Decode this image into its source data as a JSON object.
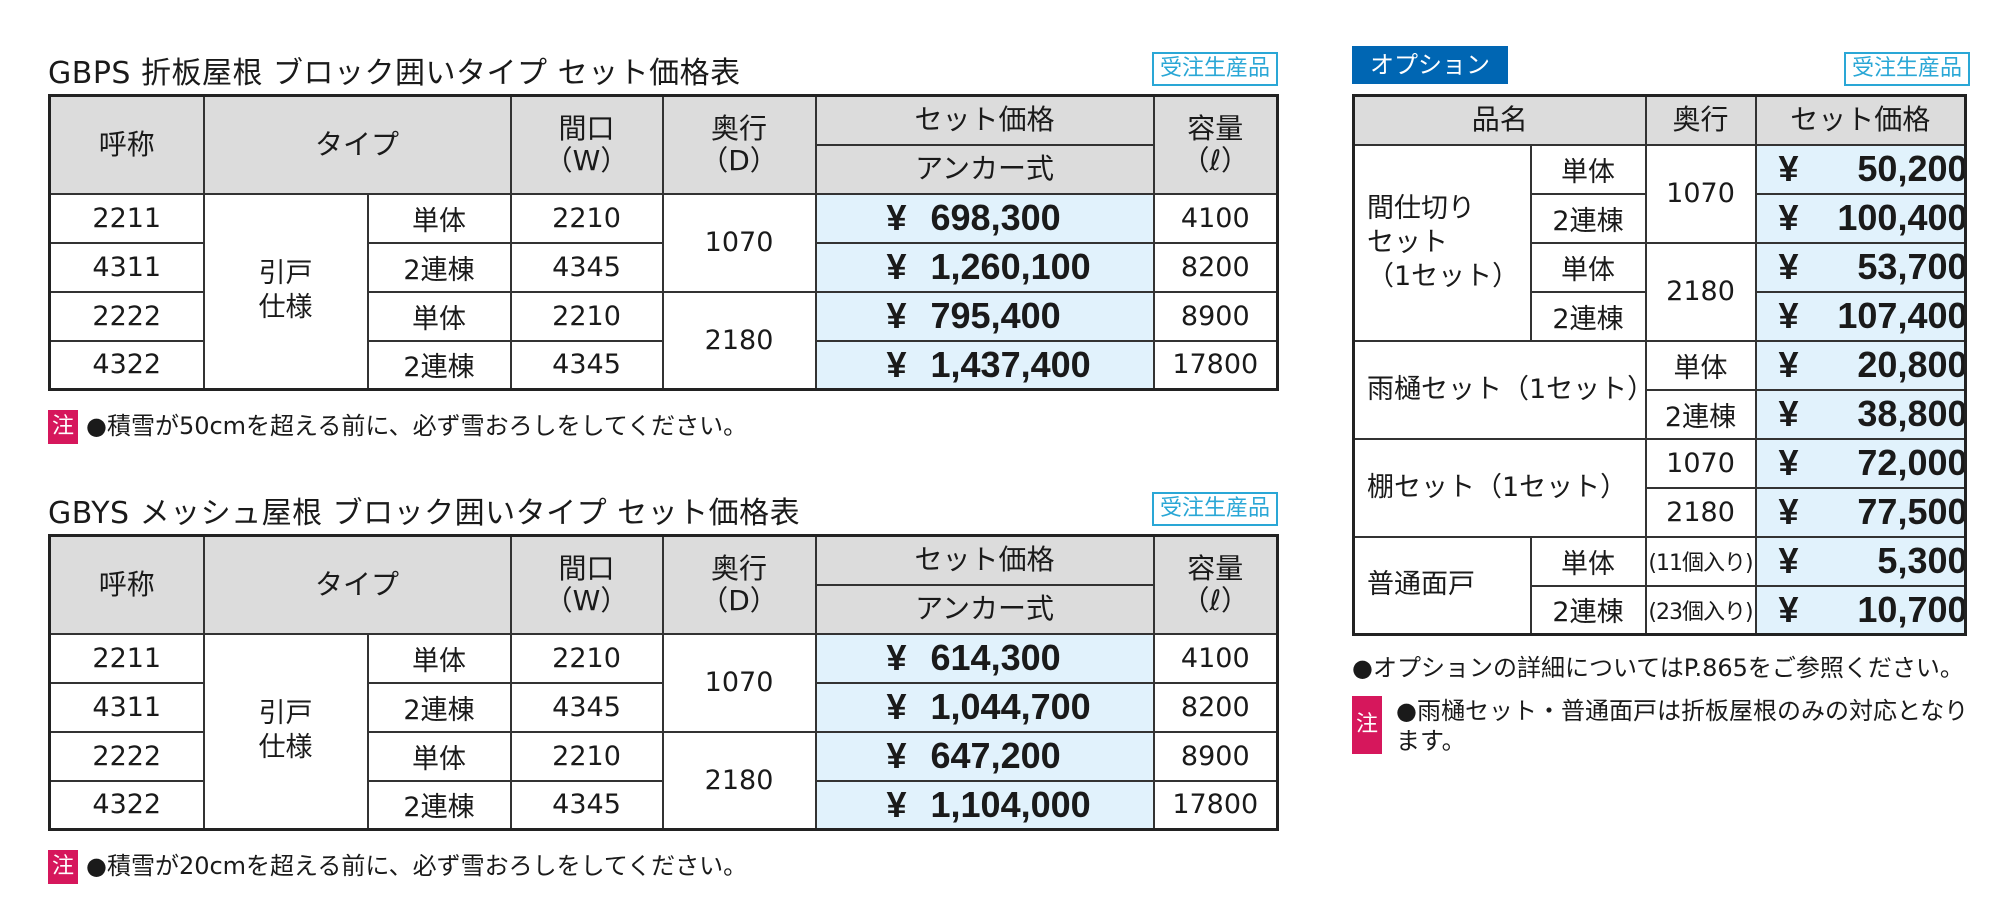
{
  "table1": {
    "title": "GBPS 折板屋根 ブロック囲いタイプ セット価格表",
    "badge": "受注生産品",
    "headers": {
      "name": "呼称",
      "type": "タイプ",
      "width": "間口\n（W）",
      "depth": "奥行\n（D）",
      "set_price": "セット価格",
      "anchor": "アンカー式",
      "capacity": "容量\n（ℓ）"
    },
    "type_label": "引戸\n仕様",
    "rows": [
      {
        "name": "2211",
        "subtype": "単体",
        "width": "2210",
        "yen": "¥",
        "price": "698,300",
        "capacity": "4100"
      },
      {
        "name": "4311",
        "subtype": "2連棟",
        "width": "4345",
        "yen": "¥",
        "price": "1,260,100",
        "capacity": "8200"
      },
      {
        "name": "2222",
        "subtype": "単体",
        "width": "2210",
        "yen": "¥",
        "price": "795,400",
        "capacity": "8900"
      },
      {
        "name": "4322",
        "subtype": "2連棟",
        "width": "4345",
        "yen": "¥",
        "price": "1,437,400",
        "capacity": "17800"
      }
    ],
    "depths": [
      "1070",
      "2180"
    ],
    "note_icon": "注",
    "note": "●積雪が50cmを超える前に、必ず雪おろしをしてください。"
  },
  "table2": {
    "title": "GBYS メッシュ屋根 ブロック囲いタイプ セット価格表",
    "badge": "受注生産品",
    "headers": {
      "name": "呼称",
      "type": "タイプ",
      "width": "間口\n（W）",
      "depth": "奥行\n（D）",
      "set_price": "セット価格",
      "anchor": "アンカー式",
      "capacity": "容量\n（ℓ）"
    },
    "type_label": "引戸\n仕様",
    "rows": [
      {
        "name": "2211",
        "subtype": "単体",
        "width": "2210",
        "yen": "¥",
        "price": "614,300",
        "capacity": "4100"
      },
      {
        "name": "4311",
        "subtype": "2連棟",
        "width": "4345",
        "yen": "¥",
        "price": "1,044,700",
        "capacity": "8200"
      },
      {
        "name": "2222",
        "subtype": "単体",
        "width": "2210",
        "yen": "¥",
        "price": "647,200",
        "capacity": "8900"
      },
      {
        "name": "4322",
        "subtype": "2連棟",
        "width": "4345",
        "yen": "¥",
        "price": "1,104,000",
        "capacity": "17800"
      }
    ],
    "depths": [
      "1070",
      "2180"
    ],
    "note_icon": "注",
    "note": "●積雪が20cmを超える前に、必ず雪おろしをしてください。"
  },
  "options": {
    "label": "オプション",
    "badge": "受注生産品",
    "headers": {
      "item": "品名",
      "depth": "奥行",
      "set_price": "セット価格"
    },
    "partition": {
      "name": "間仕切り\nセット\n（1セット）",
      "rows": [
        {
          "sub": "単体",
          "yen": "¥",
          "price": "50,200"
        },
        {
          "sub": "2連棟",
          "yen": "¥",
          "price": "100,400"
        },
        {
          "sub": "単体",
          "yen": "¥",
          "price": "53,700"
        },
        {
          "sub": "2連棟",
          "yen": "¥",
          "price": "107,400"
        }
      ],
      "depths": [
        "1070",
        "2180"
      ]
    },
    "gutter": {
      "name": "雨樋セット（1セット）",
      "rows": [
        {
          "sub": "単体",
          "yen": "¥",
          "price": "20,800"
        },
        {
          "sub": "2連棟",
          "yen": "¥",
          "price": "38,800"
        }
      ]
    },
    "shelf": {
      "name": "棚セット（1セット）",
      "rows": [
        {
          "sub": "1070",
          "yen": "¥",
          "price": "72,000"
        },
        {
          "sub": "2180",
          "yen": "¥",
          "price": "77,500"
        }
      ]
    },
    "door": {
      "name": "普通面戸",
      "rows": [
        {
          "sub": "単体",
          "qty": "(11個入り)",
          "yen": "¥",
          "price": "5,300"
        },
        {
          "sub": "2連棟",
          "qty": "(23個入り)",
          "yen": "¥",
          "price": "10,700"
        }
      ]
    },
    "note_detail": "●オプションの詳細についてはP.865をご参照ください。",
    "note_icon": "注",
    "note_limit": "●雨樋セット・普通面戸は折板屋根のみの対応となります。"
  }
}
